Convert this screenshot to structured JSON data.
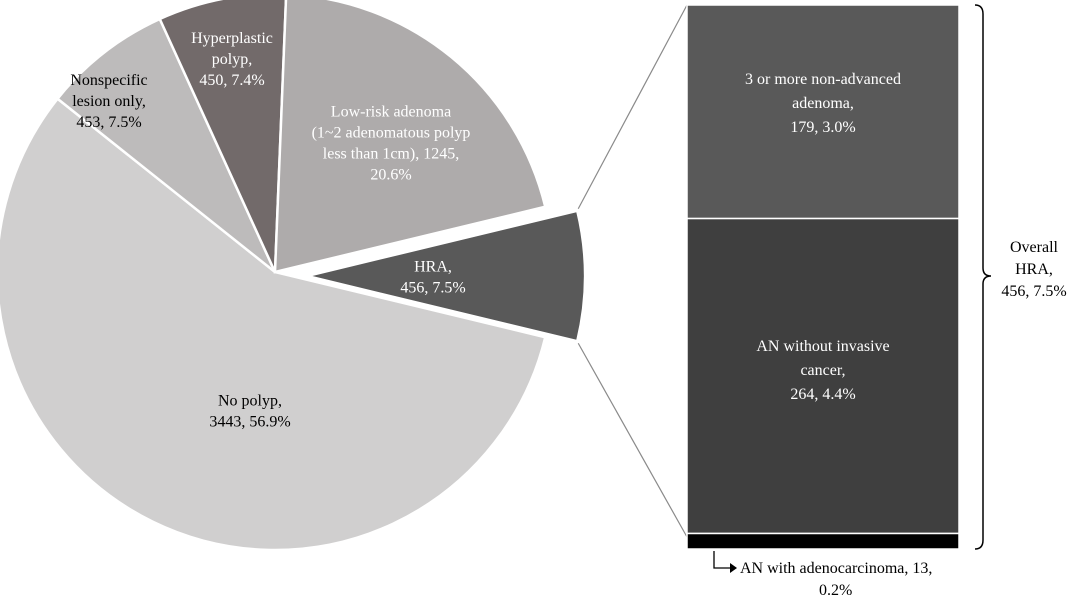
{
  "chart_data": [
    {
      "type": "pie",
      "slices": [
        {
          "label_lines": [
            "No polyp,",
            "3443, 56.9%"
          ],
          "value": 3443,
          "percent": 56.9,
          "color": "#d0cfcf",
          "text_color": "#000000"
        },
        {
          "label_lines": [
            "Nonspecific",
            "lesion only,",
            "453, 7.5%"
          ],
          "value": 453,
          "percent": 7.5,
          "color": "#bdbbbb",
          "text_color": "#000000"
        },
        {
          "label_lines": [
            "Hyperplastic",
            "polyp,",
            "450, 7.4%"
          ],
          "value": 450,
          "percent": 7.4,
          "color": "#726a6a",
          "text_color": "#ffffff"
        },
        {
          "label_lines": [
            "Low-risk adenoma",
            "(1~2 adenomatous polyp",
            "less than 1cm), 1245,",
            "20.6%"
          ],
          "value": 1245,
          "percent": 20.6,
          "color": "#aeabab",
          "text_color": "#ffffff"
        },
        {
          "label_lines": [
            "HRA,",
            "456, 7.5%"
          ],
          "value": 456,
          "percent": 7.5,
          "color": "#595959",
          "text_color": "#ffffff",
          "exploded": true
        }
      ]
    },
    {
      "type": "bar",
      "stacked": true,
      "segments": [
        {
          "label_lines": [
            "3 or more non-advanced",
            "adenoma,",
            "179, 3.0%"
          ],
          "value": 179,
          "percent": 3.0,
          "color": "#595959",
          "text_color": "#ffffff"
        },
        {
          "label_lines": [
            "AN without invasive",
            "cancer,",
            "264, 4.4%"
          ],
          "value": 264,
          "percent": 4.4,
          "color": "#3f3f3f",
          "text_color": "#ffffff"
        },
        {
          "label_lines": [
            "AN with adenocarcinoma, 13,",
            "0.2%"
          ],
          "value": 13,
          "percent": 0.2,
          "color": "#000000",
          "text_color": "#000000",
          "label_outside": true
        }
      ],
      "bracket_label_lines": [
        "Overall",
        "HRA,",
        "456, 7.5%"
      ]
    }
  ]
}
